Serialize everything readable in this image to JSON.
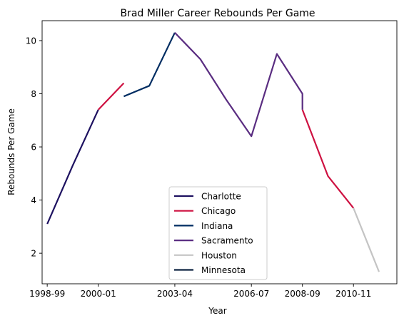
{
  "chart_data": {
    "type": "line",
    "title": "Brad Miller  Career Rebounds Per Game",
    "xlabel": "Year",
    "ylabel": "Rebounds Per Game",
    "x_ticks": [
      "1998-99",
      "2000-01",
      "2003-04",
      "2006-07",
      "2008-09",
      "2010-11"
    ],
    "y_ticks": [
      2,
      4,
      6,
      8,
      10
    ],
    "ylim": [
      0.85,
      10.75
    ],
    "legend_placement": "lower-center",
    "grid": false,
    "series": [
      {
        "name": "Charlotte",
        "color": "#1d1160",
        "points": [
          [
            "1998-99",
            3.1
          ],
          [
            "1999-00",
            5.3
          ],
          [
            "2000-01",
            7.4
          ]
        ]
      },
      {
        "name": "Chicago",
        "color": "#ce1141",
        "points": [
          [
            "2000-01",
            7.4
          ],
          [
            "2001-02",
            8.4
          ]
        ]
      },
      {
        "name": "Indiana",
        "color": "#002d62",
        "points": [
          [
            "2001-02",
            7.9
          ],
          [
            "2002-03",
            8.3
          ],
          [
            "2003-04",
            10.3
          ]
        ]
      },
      {
        "name": "Sacramento",
        "color": "#5a2d81",
        "points": [
          [
            "2003-04",
            10.3
          ],
          [
            "2004-05",
            9.3
          ],
          [
            "2005-06",
            7.8
          ],
          [
            "2006-07",
            6.4
          ],
          [
            "2007-08",
            9.5
          ],
          [
            "2008-09",
            8.0
          ],
          [
            "2008-09",
            7.4
          ]
        ]
      },
      {
        "name": "Chicago",
        "color": "#ce1141",
        "points": [
          [
            "2008-09",
            7.4
          ],
          [
            "2009-10",
            4.9
          ],
          [
            "2010-11",
            3.7
          ]
        ]
      },
      {
        "name": "Houston",
        "color": "#c4c4c4",
        "points": [
          [
            "2010-11",
            3.7
          ],
          [
            "2011-12",
            1.3
          ]
        ]
      },
      {
        "name": "Minnesota",
        "color": "#0c2340",
        "points": []
      }
    ],
    "legend": [
      {
        "label": "Charlotte",
        "color": "#1d1160"
      },
      {
        "label": "Chicago",
        "color": "#ce1141"
      },
      {
        "label": "Indiana",
        "color": "#002d62"
      },
      {
        "label": "Sacramento",
        "color": "#5a2d81"
      },
      {
        "label": "Houston",
        "color": "#c4c4c4"
      },
      {
        "label": "Minnesota",
        "color": "#0c2340"
      }
    ]
  }
}
